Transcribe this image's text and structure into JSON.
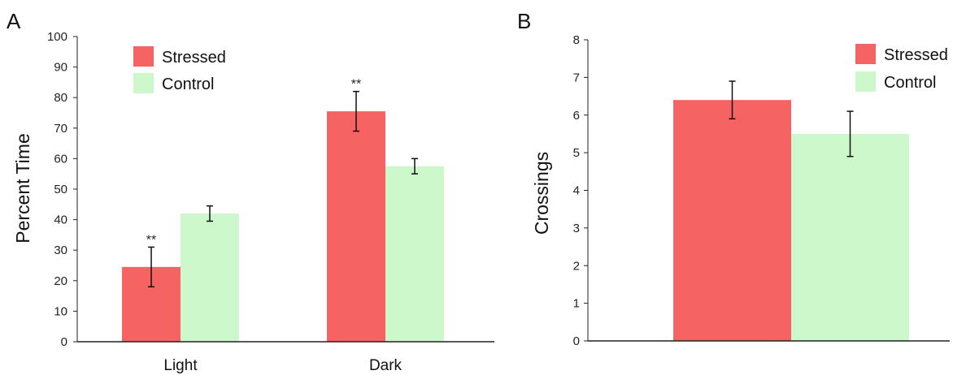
{
  "colors": {
    "stressed": "#f66363",
    "control": "#ccf8cc",
    "axis": "#222222",
    "errorbar": "#111111"
  },
  "chart_data": [
    {
      "panel": "A",
      "type": "bar",
      "categories": [
        "Light",
        "Dark"
      ],
      "ylabel": "Percent Time",
      "ylim": [
        0,
        100
      ],
      "yticks": [
        0,
        10,
        20,
        30,
        40,
        50,
        60,
        70,
        80,
        90,
        100
      ],
      "legend": "top-left",
      "grid": false,
      "series": [
        {
          "name": "Stressed",
          "values": [
            24.5,
            75.5
          ],
          "errors": [
            6.5,
            6.5
          ],
          "annotations": [
            "**",
            "**"
          ]
        },
        {
          "name": "Control",
          "values": [
            42,
            57.5
          ],
          "errors": [
            2.5,
            2.5
          ],
          "annotations": [
            "",
            ""
          ]
        }
      ]
    },
    {
      "panel": "B",
      "type": "bar",
      "categories": [
        ""
      ],
      "ylabel": "Crossings",
      "ylim": [
        0,
        8
      ],
      "yticks": [
        0,
        1,
        2,
        3,
        4,
        5,
        6,
        7,
        8
      ],
      "legend": "top-right",
      "grid": false,
      "series": [
        {
          "name": "Stressed",
          "values": [
            6.4
          ],
          "errors": [
            0.5
          ]
        },
        {
          "name": "Control",
          "values": [
            5.5
          ],
          "errors": [
            0.6
          ]
        }
      ]
    }
  ]
}
